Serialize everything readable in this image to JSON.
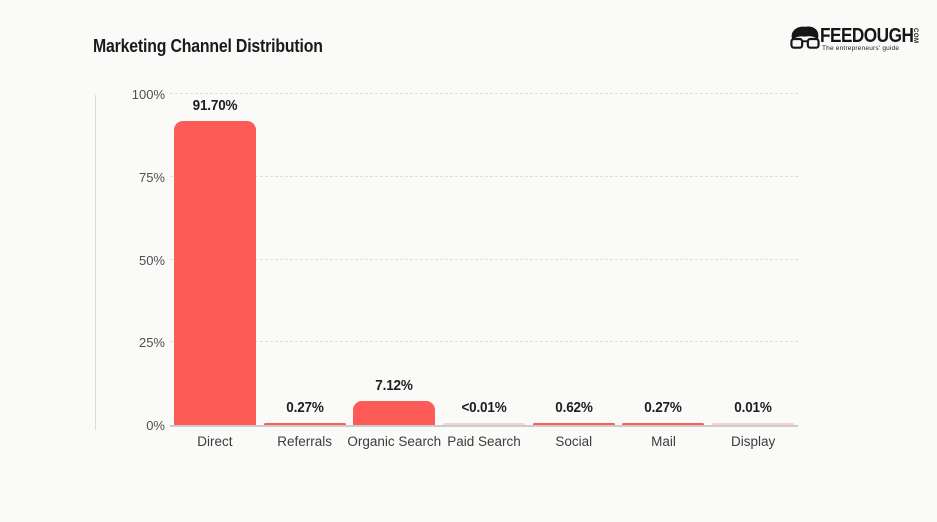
{
  "page": {
    "background": "#fafaf9"
  },
  "header": {
    "title": "Marketing Channel Distribution",
    "logo": {
      "brand": "FEEDOUGH",
      "tld": "COM",
      "tagline": "The entrepreneurs' guide",
      "icon": "glasses-face-icon",
      "color": "#161616"
    }
  },
  "chart_data": {
    "type": "bar",
    "title": "Marketing Channel Distribution",
    "categories": [
      "Direct",
      "Referrals",
      "Organic Search",
      "Paid Search",
      "Social",
      "Mail",
      "Display"
    ],
    "values": [
      91.7,
      0.27,
      7.12,
      0.005,
      0.62,
      0.27,
      0.01
    ],
    "value_labels": [
      "91.70%",
      "0.27%",
      "7.12%",
      "<0.01%",
      "0.62%",
      "0.27%",
      "0.01%"
    ],
    "bar_colors": [
      "#fc5b58",
      "#fc5b58",
      "#fc5b58",
      "#f8d0cd",
      "#fc5b58",
      "#fc5b58",
      "#f8d0cd"
    ],
    "xlabel": "",
    "ylabel": "",
    "ylim": [
      0,
      100
    ],
    "y_ticks": [
      "0%",
      "25%",
      "50%",
      "75%",
      "100%"
    ],
    "y_tick_values": [
      0,
      25,
      50,
      75,
      100
    ],
    "grid": "horizontal-dashed",
    "legend": "none",
    "accent_color": "#fc5b58",
    "muted_bar_color": "#f8d0cd",
    "gridline_color": "#dedede",
    "axis_line_color": "#cccccc"
  }
}
